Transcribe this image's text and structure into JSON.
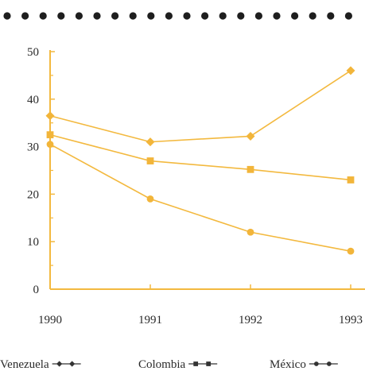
{
  "colors": {
    "series_line": "#f3b93f",
    "series_marker": "#f2b53a",
    "axis": "#f3b93f",
    "dots": "#1e1e1e",
    "text": "#2a2a2a",
    "legend_marker": "#333333"
  },
  "chart_data": {
    "type": "line",
    "x": [
      "1990",
      "1991",
      "1992",
      "1993"
    ],
    "yticks": [
      "0",
      "10",
      "20",
      "30",
      "40",
      "50"
    ],
    "ylim": [
      0,
      50
    ],
    "grid": false,
    "legend_position": "bottom",
    "series": [
      {
        "name": "Venezuela",
        "marker": "diamond",
        "values": [
          36.5,
          31,
          32.2,
          46
        ]
      },
      {
        "name": "Colombia",
        "marker": "square",
        "values": [
          32.5,
          27,
          25.2,
          23
        ]
      },
      {
        "name": "México",
        "marker": "circle",
        "values": [
          30.5,
          19,
          12,
          8
        ]
      }
    ]
  }
}
